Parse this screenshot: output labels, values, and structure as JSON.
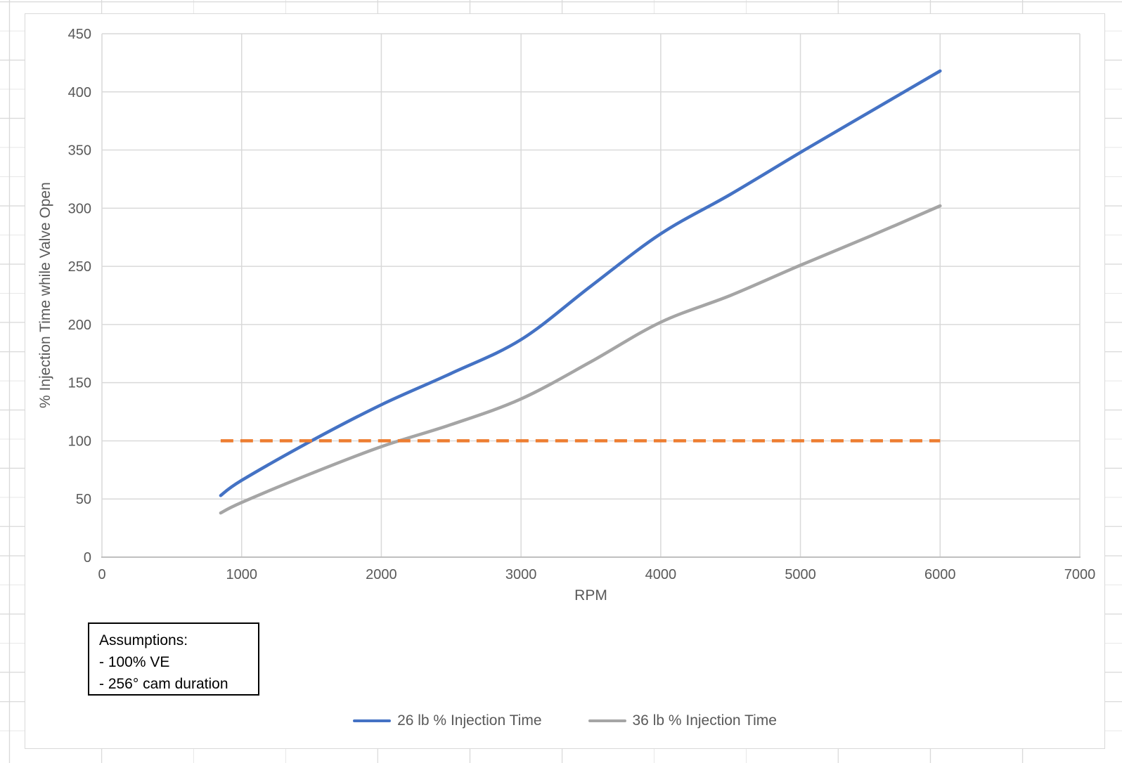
{
  "chart_data": {
    "type": "line",
    "title": "",
    "xlabel": "RPM",
    "ylabel": "% Injection Time while Valve Open",
    "xlim": [
      0,
      7000
    ],
    "ylim": [
      0,
      450
    ],
    "x_ticks": [
      0,
      1000,
      2000,
      3000,
      4000,
      5000,
      6000,
      7000
    ],
    "y_ticks": [
      0,
      50,
      100,
      150,
      200,
      250,
      300,
      350,
      400,
      450
    ],
    "grid": true,
    "grid_color": "#d9d9d9",
    "axis_color": "#bfbfbf",
    "tick_color": "#595959",
    "legend_position": "bottom-center",
    "series": [
      {
        "name": "26 lb % Injection Time",
        "color": "#4472C4",
        "line_style": "solid",
        "in_legend": true,
        "x": [
          850,
          1000,
          1500,
          2000,
          2500,
          3000,
          3500,
          4000,
          4500,
          5000,
          5500,
          6000
        ],
        "y": [
          53,
          66,
          100,
          131,
          158,
          187,
          233,
          278,
          312,
          348,
          383,
          418
        ]
      },
      {
        "name": "36 lb % Injection Time",
        "color": "#A5A5A5",
        "line_style": "solid",
        "in_legend": true,
        "x": [
          850,
          1000,
          1500,
          2000,
          2500,
          3000,
          3500,
          4000,
          4500,
          5000,
          5500,
          6000
        ],
        "y": [
          38,
          47,
          72,
          95,
          114,
          136,
          168,
          202,
          225,
          251,
          276,
          302
        ]
      },
      {
        "name": "100% injection time reference",
        "color": "#ED7D31",
        "line_style": "dashed",
        "dash": "18 10",
        "in_legend": false,
        "x": [
          850,
          6000
        ],
        "y": [
          100,
          100
        ]
      }
    ],
    "annotation": {
      "title": "Assumptions:",
      "lines": [
        "- 100% VE",
        "- 256° cam duration"
      ]
    }
  }
}
